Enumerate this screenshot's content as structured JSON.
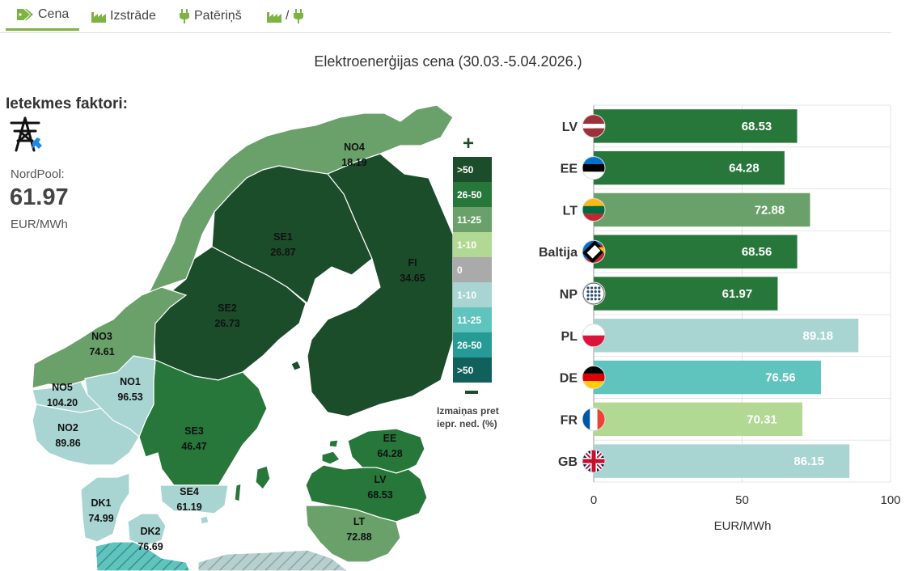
{
  "tabs": [
    {
      "label": "Cena",
      "icon": "price-tag-icon",
      "active": true
    },
    {
      "label": "Izstrāde",
      "icon": "factory-icon",
      "active": false
    },
    {
      "label": "Patēriņš",
      "icon": "plug-icon",
      "active": false
    },
    {
      "label": "/",
      "icon": "factory-plug-icon",
      "active": false
    }
  ],
  "title": "Elektroenerģijas cena (30.03.-5.04.2026.)",
  "factors": {
    "heading": "Ietekmes faktori:",
    "icon": "power-pylon-icon",
    "nordpool_label": "NordPool:",
    "nordpool_value": "61.97",
    "unit": "EUR/MWh"
  },
  "legend": {
    "items": [
      {
        "label": ">50",
        "color": "#1b4d2b"
      },
      {
        "label": "26-50",
        "color": "#27773a"
      },
      {
        "label": "11-25",
        "color": "#6aa06a"
      },
      {
        "label": "1-10",
        "color": "#b2d993"
      },
      {
        "label": "0",
        "color": "#aaaaaa"
      },
      {
        "label": "1-10",
        "color": "#a8d4d2"
      },
      {
        "label": "11-25",
        "color": "#5fc4bd"
      },
      {
        "label": "26-50",
        "color": "#269a94"
      },
      {
        "label": ">50",
        "color": "#12605c"
      }
    ],
    "plus": "+",
    "note": "Izmaiņas pret iepr. ned. (%)"
  },
  "map_regions": [
    {
      "code": "NO4",
      "value": "18.19",
      "color": "#6aa06a"
    },
    {
      "code": "SE1",
      "value": "26.87",
      "color": "#1b4d2b"
    },
    {
      "code": "FI",
      "value": "34.65",
      "color": "#1b4d2b"
    },
    {
      "code": "SE2",
      "value": "26.73",
      "color": "#1b4d2b"
    },
    {
      "code": "NO3",
      "value": "74.61",
      "color": "#6aa06a"
    },
    {
      "code": "NO1",
      "value": "96.53",
      "color": "#a8d4d2"
    },
    {
      "code": "NO5",
      "value": "104.20",
      "color": "#a8d4d2"
    },
    {
      "code": "NO2",
      "value": "89.86",
      "color": "#a8d4d2"
    },
    {
      "code": "SE3",
      "value": "46.47",
      "color": "#27773a"
    },
    {
      "code": "SE4",
      "value": "61.19",
      "color": "#a8d4d2"
    },
    {
      "code": "DK1",
      "value": "74.99",
      "color": "#a8d4d2"
    },
    {
      "code": "DK2",
      "value": "76.69",
      "color": "#a8d4d2"
    },
    {
      "code": "EE",
      "value": "64.28",
      "color": "#27773a"
    },
    {
      "code": "LV",
      "value": "68.53",
      "color": "#27773a"
    },
    {
      "code": "LT",
      "value": "72.88",
      "color": "#6aa06a"
    }
  ],
  "chart_data": {
    "type": "bar",
    "orientation": "horizontal",
    "categories": [
      "LV",
      "EE",
      "LT",
      "Baltija",
      "NP",
      "PL",
      "DE",
      "FR",
      "GB"
    ],
    "values": [
      68.53,
      64.28,
      72.88,
      68.56,
      61.97,
      89.18,
      76.56,
      70.31,
      86.15
    ],
    "value_labels": [
      "68.53",
      "64.28",
      "72.88",
      "68.56",
      "61.97",
      "89.18",
      "76.56",
      "70.31",
      "86.15"
    ],
    "colors": [
      "#27773a",
      "#27773a",
      "#6aa06a",
      "#27773a",
      "#27773a",
      "#a8d4d2",
      "#5fc4bd",
      "#b2d993",
      "#a8d4d2"
    ],
    "flags": [
      "latvia-flag-icon",
      "estonia-flag-icon",
      "lithuania-flag-icon",
      "baltics-flag-icon",
      "nordpool-logo-icon",
      "poland-flag-icon",
      "germany-flag-icon",
      "france-flag-icon",
      "uk-flag-icon"
    ],
    "xlabel": "EUR/MWh",
    "xlim": [
      0,
      100
    ],
    "xticks": [
      0,
      50,
      100
    ],
    "grid": true,
    "legend": "none"
  }
}
